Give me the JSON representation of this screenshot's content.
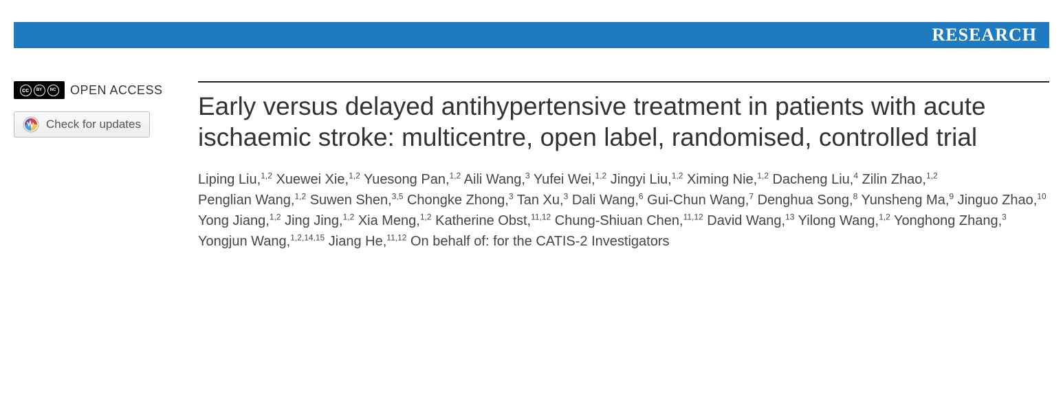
{
  "banner": {
    "label": "RESEARCH",
    "background_color": "#1f7bc0",
    "text_color": "#ffffff"
  },
  "sidebar": {
    "open_access_label": "OPEN ACCESS",
    "check_updates_label": "Check for updates",
    "cc_glyphs": {
      "cc": "cc",
      "by": "BY",
      "nc": "NC"
    }
  },
  "article": {
    "title": "Early versus delayed antihypertensive treatment in patients with acute ischaemic stroke: multicentre, open label, randomised, controlled trial",
    "authors": [
      {
        "name": "Liping Liu",
        "affil": "1,2"
      },
      {
        "name": "Xuewei Xie",
        "affil": "1,2"
      },
      {
        "name": "Yuesong Pan",
        "affil": "1,2"
      },
      {
        "name": "Aili Wang",
        "affil": "3"
      },
      {
        "name": "Yufei Wei",
        "affil": "1,2"
      },
      {
        "name": "Jingyi Liu",
        "affil": "1,2"
      },
      {
        "name": "Ximing Nie",
        "affil": "1,2"
      },
      {
        "name": "Dacheng Liu",
        "affil": "4"
      },
      {
        "name": "Zilin Zhao",
        "affil": "1,2"
      },
      {
        "name": "Penglian Wang",
        "affil": "1,2"
      },
      {
        "name": "Suwen Shen",
        "affil": "3,5"
      },
      {
        "name": "Chongke Zhong",
        "affil": "3"
      },
      {
        "name": "Tan Xu",
        "affil": "3"
      },
      {
        "name": "Dali Wang",
        "affil": "6"
      },
      {
        "name": "Gui-Chun Wang",
        "affil": "7"
      },
      {
        "name": "Denghua Song",
        "affil": "8"
      },
      {
        "name": "Yunsheng Ma",
        "affil": "9"
      },
      {
        "name": "Jinguo Zhao",
        "affil": "10"
      },
      {
        "name": "Yong Jiang",
        "affil": "1,2"
      },
      {
        "name": "Jing Jing",
        "affil": "1,2"
      },
      {
        "name": "Xia Meng",
        "affil": "1,2"
      },
      {
        "name": "Katherine Obst",
        "affil": "11,12"
      },
      {
        "name": "Chung-Shiuan Chen",
        "affil": "11,12"
      },
      {
        "name": "David Wang",
        "affil": "13"
      },
      {
        "name": "Yilong Wang",
        "affil": "1,2"
      },
      {
        "name": "Yonghong Zhang",
        "affil": "3"
      },
      {
        "name": "Yongjun Wang",
        "affil": "1,2,14,15"
      },
      {
        "name": "Jiang He",
        "affil": "11,12"
      }
    ],
    "authors_suffix": "On behalf of: for the CATIS-2 Investigators"
  },
  "style": {
    "title_fontsize": 37,
    "author_fontsize": 20,
    "rule_color": "#222222",
    "body_text_color": "#333333"
  }
}
